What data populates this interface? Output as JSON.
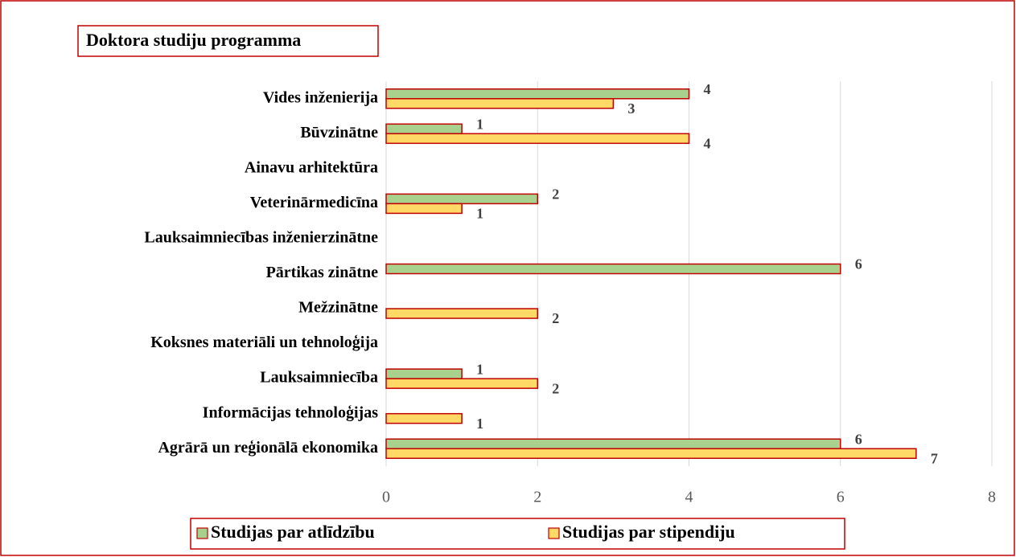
{
  "chart_data": {
    "type": "hbar",
    "title": "Doktora studiju programma",
    "categories": [
      "Vides inženierija",
      "Būvzinātne",
      "Ainavu arhitektūra",
      "Veterinārmedicīna",
      "Lauksaimniecības inženierzinātne",
      "Pārtikas zinātne",
      "Mežzinātne",
      "Koksnes materiāli un tehnoloģija",
      "Lauksaimniecība",
      "Informācijas tehnoloģijas",
      "Agrārā un reģionālā ekonomika"
    ],
    "series": [
      {
        "name": "Studijas par atlīdzību",
        "color": "#a9d18e",
        "values": [
          4,
          1,
          null,
          2,
          null,
          6,
          null,
          null,
          1,
          null,
          6
        ]
      },
      {
        "name": "Studijas par stipendiju",
        "color": "#ffd966",
        "values": [
          3,
          4,
          null,
          1,
          null,
          null,
          2,
          null,
          2,
          1,
          7
        ]
      }
    ],
    "xlim": [
      0,
      8
    ],
    "xticks": [
      0,
      2,
      4,
      6,
      8
    ],
    "grid": true,
    "legend": "bottom"
  }
}
